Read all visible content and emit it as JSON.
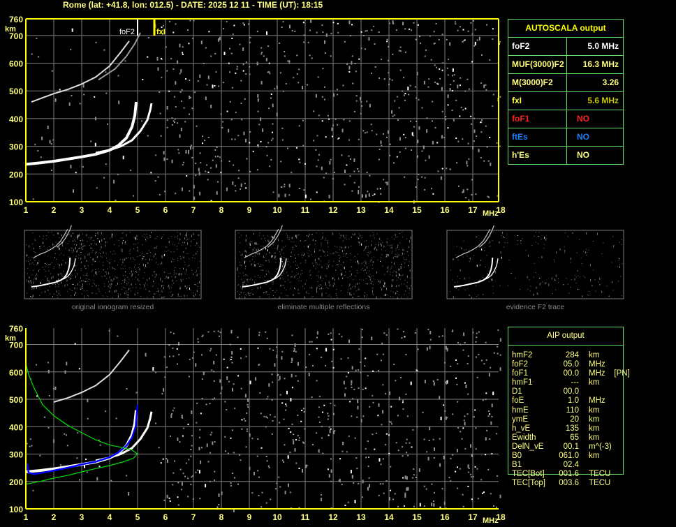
{
  "header": {
    "title": "Rome (lat: +41.8, lon: 012.5) - DATE: 2025 12 11 - TIME (UT): 18:15"
  },
  "colors": {
    "axis": "#ffff00",
    "grid": "#808080",
    "trace": "#ffffff",
    "noise": "#909090",
    "profile": "#00e000",
    "aip_trace": "#0000ff",
    "table_border": "#60e060"
  },
  "autoscala": {
    "title": "AUTOSCALA output",
    "rows": [
      {
        "key": "foF2",
        "value": "5.0 MHz",
        "key_color": "#ffffff",
        "value_color": "#ffffff"
      },
      {
        "key": "MUF(3000)F2",
        "value": "16.3 MHz",
        "key_color": "#ffff80",
        "value_color": "#ffff80"
      },
      {
        "key": "M(3000)F2",
        "value": "3.26",
        "key_color": "#ffff80",
        "value_color": "#ffff80"
      },
      {
        "key": "fxI",
        "value": "5.6 MHz",
        "key_color": "#ffff40",
        "value_color": "#c8c800"
      },
      {
        "key": "foF1",
        "value": "NO",
        "key_color": "#ff2020",
        "value_color": "#ff2020"
      },
      {
        "key": "ftEs",
        "value": "NO",
        "key_color": "#2080ff",
        "value_color": "#2080ff"
      },
      {
        "key": "h'Es",
        "value": "NO",
        "key_color": "#ffff80",
        "value_color": "#ffff80"
      }
    ]
  },
  "aip": {
    "title": "AIP output",
    "rows": [
      {
        "k": "hmF2",
        "v": "284",
        "u": "km"
      },
      {
        "k": "foF2",
        "v": "05.0",
        "u": "MHz"
      },
      {
        "k": "foF1",
        "v": "00.0",
        "u": "MHz    [PN]"
      },
      {
        "k": "hmF1",
        "v": "---",
        "u": "km"
      },
      {
        "k": "D1",
        "v": "00.0",
        "u": ""
      },
      {
        "k": "foE",
        "v": "1.0",
        "u": "MHz"
      },
      {
        "k": "hmE",
        "v": "110",
        "u": "km"
      },
      {
        "k": "ymE",
        "v": "20",
        "u": "km"
      },
      {
        "k": "h_vE",
        "v": "135",
        "u": "km"
      },
      {
        "k": "Ewidth",
        "v": "65",
        "u": "km"
      },
      {
        "k": "DelN_vE",
        "v": "00.1",
        "u": "m^(-3)"
      },
      {
        "k": "B0",
        "v": "061.0",
        "u": "km"
      },
      {
        "k": "B1",
        "v": "02.4",
        "u": ""
      },
      {
        "k": "TEC[Bot]",
        "v": "001.6",
        "u": "TECU"
      },
      {
        "k": "TEC[Top]",
        "v": "003.6",
        "u": "TECU"
      }
    ]
  },
  "thumbnails": [
    {
      "caption": "original ionogram resized"
    },
    {
      "caption": "eliminate multiple reflections"
    },
    {
      "caption": "evidence F2 trace"
    }
  ],
  "chart_data": [
    {
      "type": "scatter",
      "title": "",
      "xlabel": "MHz",
      "ylabel": "km",
      "xlim": [
        1,
        18
      ],
      "ylim": [
        100,
        760
      ],
      "xticks": [
        "1",
        "2",
        "3",
        "4",
        "5",
        "6",
        "7",
        "8",
        "9",
        "10",
        "11",
        "12",
        "13",
        "14",
        "15",
        "16",
        "17",
        "18"
      ],
      "yticks": [
        "100",
        "200",
        "300",
        "400",
        "500",
        "600",
        "700",
        "760"
      ],
      "grid": true,
      "markers": [
        {
          "label": "foF2",
          "x": 5.0,
          "color": "#ffffff"
        },
        {
          "label": "fxI",
          "x": 5.6,
          "color": "#ffff00"
        }
      ],
      "series": [
        {
          "kind": "o-trace",
          "points": [
            [
              1.0,
              235
            ],
            [
              1.5,
              240
            ],
            [
              2,
              246
            ],
            [
              2.5,
              254
            ],
            [
              3,
              262
            ],
            [
              3.5,
              271
            ],
            [
              4,
              286
            ],
            [
              4.3,
              302
            ],
            [
              4.6,
              330
            ],
            [
              4.8,
              370
            ],
            [
              4.9,
              410
            ],
            [
              4.95,
              460
            ]
          ]
        },
        {
          "kind": "x-trace",
          "points": [
            [
              3.5,
              276
            ],
            [
              4,
              287
            ],
            [
              4.4,
              300
            ],
            [
              4.8,
              322
            ],
            [
              5.1,
              355
            ],
            [
              5.35,
              395
            ],
            [
              5.45,
              430
            ],
            [
              5.5,
              455
            ]
          ]
        },
        {
          "kind": "second-hop",
          "points": [
            [
              1.2,
              460
            ],
            [
              1.6,
              475
            ],
            [
              2,
              490
            ],
            [
              2.5,
              505
            ],
            [
              3,
              525
            ],
            [
              3.5,
              550
            ],
            [
              4,
              590
            ],
            [
              4.4,
              640
            ],
            [
              4.7,
              680
            ]
          ]
        },
        {
          "kind": "second-hop-x",
          "points": [
            [
              3.6,
              540
            ],
            [
              4.2,
              580
            ],
            [
              4.6,
              625
            ],
            [
              4.9,
              670
            ],
            [
              5.1,
              710
            ]
          ]
        }
      ]
    },
    {
      "type": "line",
      "title": "",
      "xlabel": "MHz",
      "ylabel": "km",
      "xlim": [
        1,
        18
      ],
      "ylim": [
        100,
        760
      ],
      "xticks": [
        "1",
        "2",
        "3",
        "4",
        "5",
        "6",
        "7",
        "8",
        "9",
        "10",
        "11",
        "12",
        "13",
        "14",
        "15",
        "16",
        "17",
        "18"
      ],
      "yticks": [
        "100",
        "200",
        "300",
        "400",
        "500",
        "600",
        "700",
        "760"
      ],
      "grid": true,
      "series": [
        {
          "kind": "o-trace",
          "points": [
            [
              1.0,
              235
            ],
            [
              1.5,
              240
            ],
            [
              2,
              246
            ],
            [
              2.5,
              254
            ],
            [
              3,
              262
            ],
            [
              3.5,
              271
            ],
            [
              4,
              286
            ],
            [
              4.3,
              302
            ],
            [
              4.6,
              330
            ],
            [
              4.8,
              370
            ],
            [
              4.9,
              410
            ],
            [
              4.95,
              460
            ]
          ]
        },
        {
          "kind": "x-trace",
          "points": [
            [
              3.5,
              276
            ],
            [
              4,
              287
            ],
            [
              4.4,
              300
            ],
            [
              4.8,
              322
            ],
            [
              5.1,
              355
            ],
            [
              5.35,
              395
            ],
            [
              5.45,
              430
            ],
            [
              5.5,
              455
            ]
          ]
        },
        {
          "kind": "second-hop",
          "points": [
            [
              2,
              490
            ],
            [
              2.5,
              505
            ],
            [
              3,
              525
            ],
            [
              3.5,
              550
            ],
            [
              4,
              590
            ],
            [
              4.4,
              640
            ],
            [
              4.7,
              680
            ]
          ]
        },
        {
          "kind": "aip-fit",
          "color": "#0000ff",
          "points": [
            [
              1.05,
              265
            ],
            [
              1.1,
              232
            ],
            [
              1.3,
              227
            ],
            [
              1.6,
              232
            ],
            [
              2,
              240
            ],
            [
              2.5,
              250
            ],
            [
              3,
              262
            ],
            [
              3.5,
              272
            ],
            [
              4,
              288
            ],
            [
              4.3,
              305
            ],
            [
              4.6,
              330
            ],
            [
              4.8,
              360
            ],
            [
              4.93,
              400
            ],
            [
              5.0,
              480
            ]
          ]
        },
        {
          "kind": "density-profile",
          "color": "#00e000",
          "points": [
            [
              1.0,
              190
            ],
            [
              1.5,
              200
            ],
            [
              2,
              212
            ],
            [
              2.5,
              222
            ],
            [
              3,
              235
            ],
            [
              3.5,
              247
            ],
            [
              4,
              258
            ],
            [
              4.5,
              272
            ],
            [
              4.85,
              285
            ],
            [
              5.0,
              300
            ],
            [
              4.8,
              315
            ],
            [
              4.4,
              325
            ],
            [
              4,
              333
            ],
            [
              3.5,
              352
            ],
            [
              3,
              378
            ],
            [
              2.5,
              405
            ],
            [
              2,
              440
            ],
            [
              1.6,
              480
            ],
            [
              1.3,
              540
            ],
            [
              1.1,
              590
            ],
            [
              1.0,
              630
            ]
          ]
        }
      ]
    }
  ]
}
